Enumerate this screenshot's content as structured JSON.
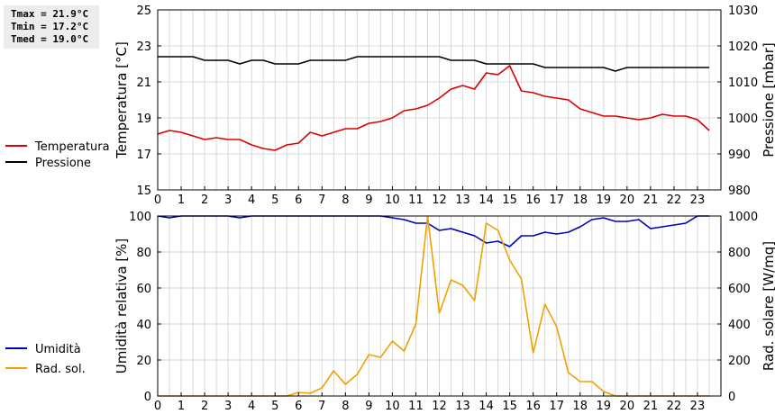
{
  "stats": {
    "tmax": "Tmax = 21.9°C",
    "tmin": "Tmin = 17.2°C",
    "tmed": "Tmed = 19.0°C"
  },
  "chart_data": [
    {
      "type": "line",
      "x_ticks": [
        "0",
        "1",
        "2",
        "3",
        "4",
        "5",
        "6",
        "7",
        "8",
        "9",
        "10",
        "11",
        "12",
        "13",
        "14",
        "15",
        "16",
        "17",
        "18",
        "19",
        "20",
        "21",
        "22",
        "23"
      ],
      "xlim": [
        0,
        24
      ],
      "ylabel": "Temperatura [°C]",
      "ylim": [
        15,
        25
      ],
      "y_ticks": [
        "15",
        "17",
        "19",
        "21",
        "23",
        "25"
      ],
      "ylabel_right": "Pressione [mbar]",
      "ylim_right": [
        980,
        1030
      ],
      "y_ticks_right": [
        "980",
        "990",
        "1000",
        "1010",
        "1020",
        "1030"
      ],
      "grid": true,
      "legend": "left",
      "series": [
        {
          "name": "Temperatura",
          "axis": "left",
          "color": "#dd0000",
          "x": [
            0,
            0.5,
            1,
            1.5,
            2,
            2.5,
            3,
            3.5,
            4,
            4.5,
            5,
            5.5,
            6,
            6.5,
            7,
            7.5,
            8,
            8.5,
            9,
            9.5,
            10,
            10.5,
            11,
            11.5,
            12,
            12.5,
            13,
            13.5,
            14,
            14.5,
            15,
            15.5,
            16,
            16.5,
            17,
            17.5,
            18,
            18.5,
            19,
            19.5,
            20,
            20.5,
            21,
            21.5,
            22,
            22.5,
            23,
            23.5
          ],
          "values": [
            18.1,
            18.3,
            18.2,
            18.0,
            17.8,
            17.9,
            17.8,
            17.8,
            17.5,
            17.3,
            17.2,
            17.5,
            17.6,
            18.2,
            18.0,
            18.2,
            18.4,
            18.4,
            18.7,
            18.8,
            19.0,
            19.4,
            19.5,
            19.7,
            20.1,
            20.6,
            20.8,
            20.6,
            21.5,
            21.4,
            21.9,
            20.5,
            20.4,
            20.2,
            20.1,
            20.0,
            19.5,
            19.3,
            19.1,
            19.1,
            19.0,
            18.9,
            19.0,
            19.2,
            19.1,
            19.1,
            18.9,
            18.3
          ]
        },
        {
          "name": "Pressione",
          "axis": "right",
          "color": "#000000",
          "x": [
            0,
            0.5,
            1,
            1.5,
            2,
            2.5,
            3,
            3.5,
            4,
            4.5,
            5,
            5.5,
            6,
            6.5,
            7,
            7.5,
            8,
            8.5,
            9,
            9.5,
            10,
            10.5,
            11,
            11.5,
            12,
            12.5,
            13,
            13.5,
            14,
            14.5,
            15,
            15.5,
            16,
            16.5,
            17,
            17.5,
            18,
            18.5,
            19,
            19.5,
            20,
            20.5,
            21,
            21.5,
            22,
            22.5,
            23,
            23.5
          ],
          "values": [
            1017,
            1017,
            1017,
            1017,
            1016,
            1016,
            1016,
            1015,
            1016,
            1016,
            1015,
            1015,
            1015,
            1016,
            1016,
            1016,
            1016,
            1017,
            1017,
            1017,
            1017,
            1017,
            1017,
            1017,
            1017,
            1016,
            1016,
            1016,
            1015,
            1015,
            1015,
            1015,
            1015,
            1014,
            1014,
            1014,
            1014,
            1014,
            1014,
            1013,
            1014,
            1014,
            1014,
            1014,
            1014,
            1014,
            1014,
            1014
          ]
        }
      ]
    },
    {
      "type": "line",
      "x_ticks": [
        "0",
        "1",
        "2",
        "3",
        "4",
        "5",
        "6",
        "7",
        "8",
        "9",
        "10",
        "11",
        "12",
        "13",
        "14",
        "15",
        "16",
        "17",
        "18",
        "19",
        "20",
        "21",
        "22",
        "23"
      ],
      "xlim": [
        0,
        24
      ],
      "ylabel": "Umidità relativa [%]",
      "ylim": [
        0,
        100
      ],
      "y_ticks": [
        "0",
        "20",
        "40",
        "60",
        "80",
        "100"
      ],
      "ylabel_right": "Rad. solare [W/mq]",
      "ylim_right": [
        0,
        1000
      ],
      "y_ticks_right": [
        "0",
        "200",
        "400",
        "600",
        "800",
        "1000"
      ],
      "grid": true,
      "legend": "left",
      "series": [
        {
          "name": "Umidità",
          "axis": "left",
          "color": "#0000bb",
          "x": [
            0,
            0.5,
            1,
            1.5,
            2,
            2.5,
            3,
            3.5,
            4,
            4.5,
            5,
            5.5,
            6,
            6.5,
            7,
            7.5,
            8,
            8.5,
            9,
            9.5,
            10,
            10.5,
            11,
            11.5,
            12,
            12.5,
            13,
            13.5,
            14,
            14.5,
            15,
            15.5,
            16,
            16.5,
            17,
            17.5,
            18,
            18.5,
            19,
            19.5,
            20,
            20.5,
            21,
            21.5,
            22,
            22.5,
            23,
            23.5
          ],
          "values": [
            100,
            99,
            100,
            100,
            100,
            100,
            100,
            99,
            100,
            100,
            100,
            100,
            100,
            100,
            100,
            100,
            100,
            100,
            100,
            100,
            99,
            98,
            96,
            96,
            92,
            93,
            91,
            89,
            85,
            86,
            83,
            89,
            89,
            91,
            90,
            91,
            94,
            98,
            99,
            97,
            97,
            98,
            93,
            94,
            95,
            96,
            100,
            100
          ]
        },
        {
          "name": "Rad. sol.",
          "axis": "right",
          "color": "#f0a000",
          "x": [
            0,
            0.5,
            1,
            1.5,
            2,
            2.5,
            3,
            3.5,
            4,
            4.5,
            5,
            5.5,
            6,
            6.5,
            7,
            7.5,
            8,
            8.5,
            9,
            9.5,
            10,
            10.5,
            11,
            11.5,
            12,
            12.5,
            13,
            13.5,
            14,
            14.5,
            15,
            15.5,
            16,
            16.5,
            17,
            17.5,
            18,
            18.5,
            19,
            19.5,
            20,
            20.5,
            21,
            21.5,
            22,
            22.5,
            23,
            23.5
          ],
          "values": [
            0,
            0,
            0,
            0,
            0,
            0,
            0,
            0,
            0,
            0,
            0,
            0,
            20,
            15,
            45,
            140,
            65,
            120,
            230,
            215,
            305,
            250,
            400,
            1000,
            460,
            645,
            615,
            530,
            960,
            920,
            755,
            650,
            240,
            510,
            385,
            130,
            80,
            80,
            25,
            0,
            0,
            0,
            0,
            0,
            0,
            0,
            0,
            0
          ]
        }
      ]
    }
  ]
}
